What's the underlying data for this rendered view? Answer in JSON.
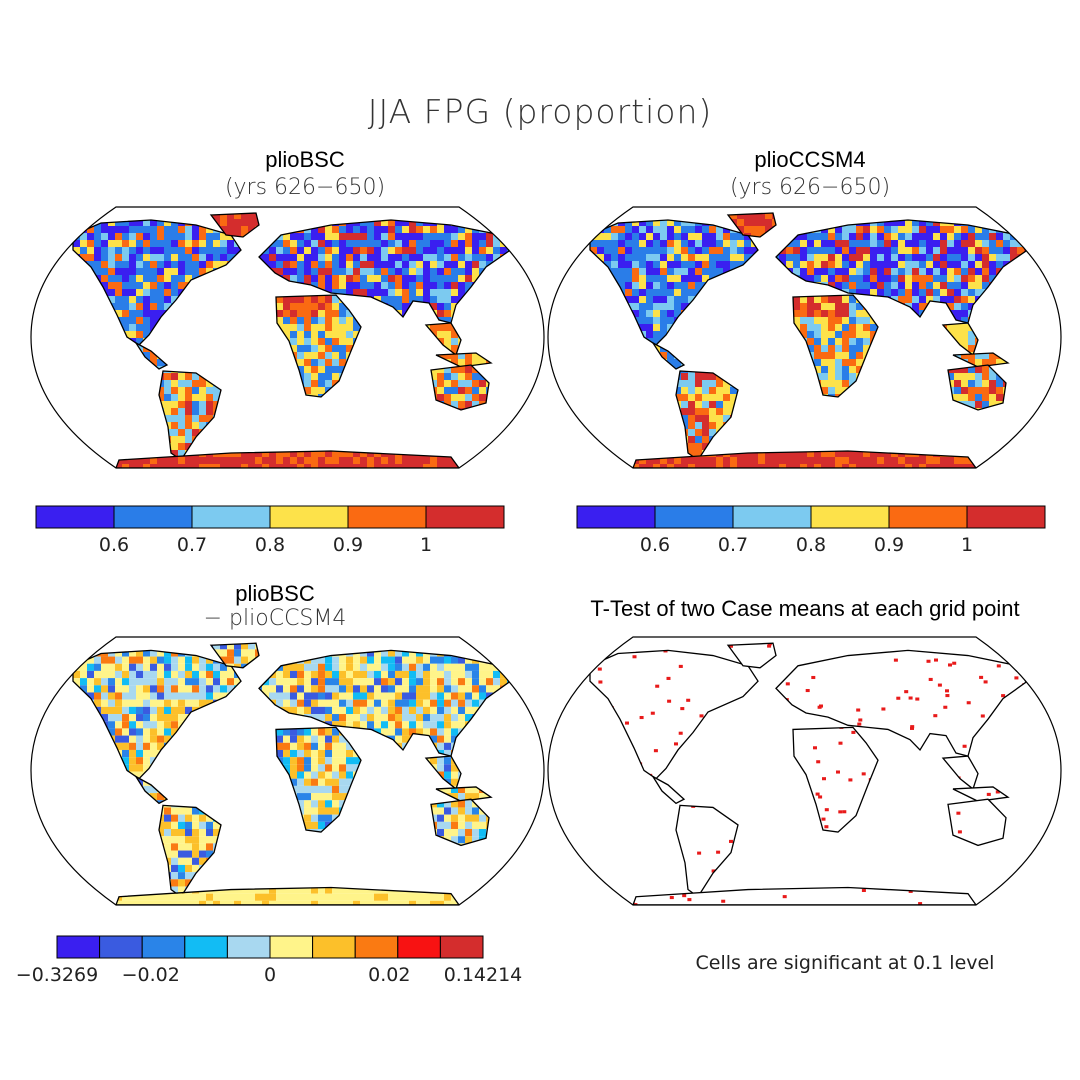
{
  "title": "JJA FPG (proportion)",
  "panels": [
    {
      "title": "plioBSC",
      "subtitle": "(yrs 626−650)",
      "kind": "abs"
    },
    {
      "title": "plioCCSM4",
      "subtitle": "(yrs 626−650)",
      "kind": "abs"
    },
    {
      "title": "plioBSC",
      "subtitle": "− plioCCSM4",
      "kind": "diff"
    },
    {
      "title": "T-Test of two Case means at each grid point",
      "subtitle": "",
      "kind": "ttest"
    }
  ],
  "colorbar_abs": {
    "colors": [
      "#3a1ff0",
      "#2a7de8",
      "#7ccaf0",
      "#fde24a",
      "#fa6a12",
      "#d42d2d"
    ],
    "labels": [
      "0.6",
      "0.7",
      "0.8",
      "0.9",
      "1"
    ]
  },
  "colorbar_diff": {
    "colors": [
      "#3a1ff0",
      "#3a5be0",
      "#2a84e8",
      "#12bcf4",
      "#a8d8f0",
      "#fff48a",
      "#fcc02a",
      "#fa7a12",
      "#f81212",
      "#d42d2d"
    ],
    "labels": [
      "−0.3269",
      "−0.02",
      "0",
      "0.02",
      "0.14214"
    ]
  },
  "ttest_color": "#e81a1a",
  "significance_note": "Cells are significant at 0.1 level"
}
